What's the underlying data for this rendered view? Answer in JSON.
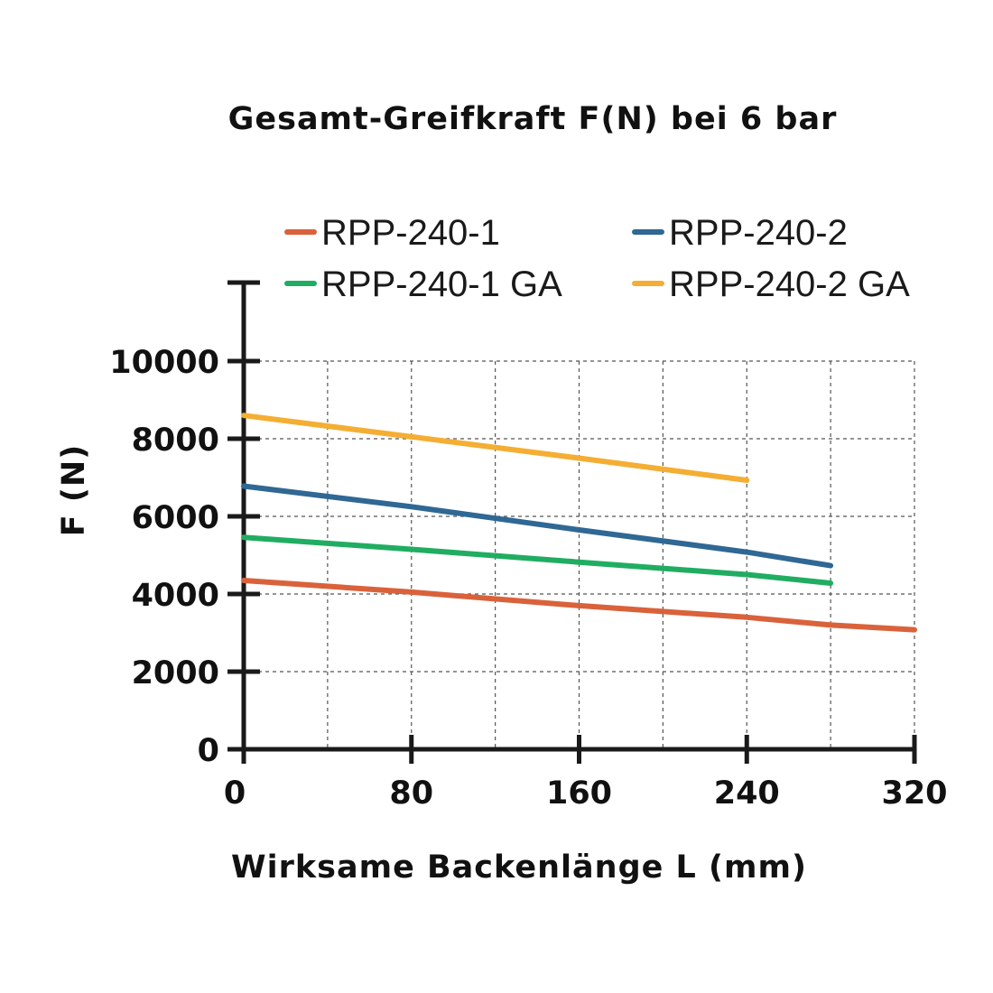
{
  "chart_data": {
    "type": "line",
    "title": "Gesamt-Greifkraft F(N) bei 6 bar",
    "xlabel": "Wirksame Backenlänge L (mm)",
    "ylabel": "F (N)",
    "xlim": [
      0,
      320
    ],
    "ylim": [
      0,
      10000
    ],
    "x_ticks": [
      0,
      80,
      160,
      240,
      320
    ],
    "x_tick_labels": [
      "0",
      "80",
      "160",
      "240",
      "320"
    ],
    "y_ticks": [
      0,
      2000,
      4000,
      6000,
      8000,
      10000
    ],
    "y_tick_labels": [
      "0",
      "2000",
      "4000",
      "6000",
      "8000",
      "10000"
    ],
    "grid": true,
    "legend_position": "top",
    "series": [
      {
        "name": "RPP-240-1",
        "color": "#d9623b",
        "x": [
          0,
          80,
          160,
          240,
          280,
          320
        ],
        "y": [
          4350,
          4050,
          3700,
          3400,
          3200,
          3080
        ]
      },
      {
        "name": "RPP-240-2",
        "color": "#2f6894",
        "x": [
          0,
          80,
          160,
          240,
          280
        ],
        "y": [
          6780,
          6250,
          5650,
          5080,
          4730
        ]
      },
      {
        "name": "RPP-240-1 GA",
        "color": "#20ad62",
        "x": [
          0,
          80,
          160,
          240,
          280
        ],
        "y": [
          5460,
          5150,
          4820,
          4500,
          4280
        ]
      },
      {
        "name": "RPP-240-2 GA",
        "color": "#f4ae33",
        "x": [
          0,
          80,
          160,
          240
        ],
        "y": [
          8600,
          8050,
          7500,
          6930
        ]
      }
    ]
  }
}
